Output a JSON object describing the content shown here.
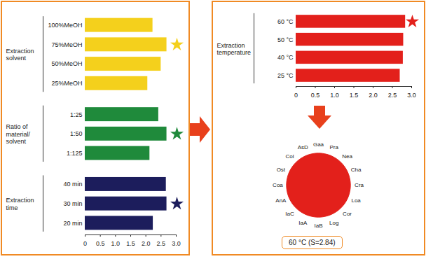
{
  "chart_data": [
    {
      "type": "bar",
      "orientation": "horizontal",
      "marker": "star",
      "grid": false,
      "groups": [
        {
          "name": "Extraction solvent",
          "color": "#f4d01c",
          "categories": [
            "100%MeOH",
            "75%MeOH",
            "50%MeOH",
            "25%MeOH"
          ],
          "values": [
            2.23,
            2.69,
            2.5,
            2.06
          ],
          "selected": "75%MeOH"
        },
        {
          "name": "Ratio of material/ solvent",
          "color": "#1f8a3b",
          "categories": [
            "1:25",
            "1:50",
            "1:125"
          ],
          "values": [
            2.42,
            2.69,
            2.13
          ],
          "selected": "1:50"
        },
        {
          "name": "Extraction time",
          "color": "#1c1d5c",
          "categories": [
            "40 min",
            "30 min",
            "20 min"
          ],
          "values": [
            2.67,
            2.69,
            2.24
          ],
          "selected": "30 min"
        }
      ],
      "xlim": [
        0,
        3
      ],
      "xticks": [
        0,
        0.5,
        {
          "value": 1,
          "label": "1.0"
        },
        1.5,
        {
          "value": 2,
          "label": "2.0"
        },
        2.5,
        {
          "value": 3,
          "label": "3.0"
        }
      ]
    },
    {
      "type": "bar",
      "orientation": "horizontal",
      "marker": "star",
      "grid": false,
      "groups": [
        {
          "name": "Extraction temperature",
          "color": "#e3201b",
          "categories": [
            "60 °C",
            "50 °C",
            "40 °C",
            "25 °C"
          ],
          "values": [
            2.84,
            2.79,
            2.78,
            2.7
          ],
          "selected": "60 °C"
        }
      ],
      "xlim": [
        0,
        3
      ],
      "xticks": [
        0,
        0.5,
        {
          "value": 1,
          "label": "1.0"
        },
        1.5,
        {
          "value": 2,
          "label": "2.0"
        },
        2.5,
        {
          "value": 3,
          "label": "3.0"
        }
      ]
    },
    {
      "type": "radar",
      "color": "#e3201b",
      "tick_labels": false,
      "categories": [
        "Gaa",
        "Pra",
        "Nea",
        "Cha",
        "Cra",
        "Loa",
        "Cor",
        "Log",
        "IaB",
        "IaA",
        "IaC",
        "AnA",
        "Coa",
        "Ost",
        "Col",
        "AsD"
      ],
      "values": [
        1,
        1,
        1,
        1,
        1,
        1,
        1,
        1,
        1,
        1,
        1,
        1,
        1,
        1,
        1,
        1
      ],
      "ylim": [
        0,
        1
      ],
      "annotations": [
        "60 °C (S=2.84)"
      ]
    }
  ]
}
